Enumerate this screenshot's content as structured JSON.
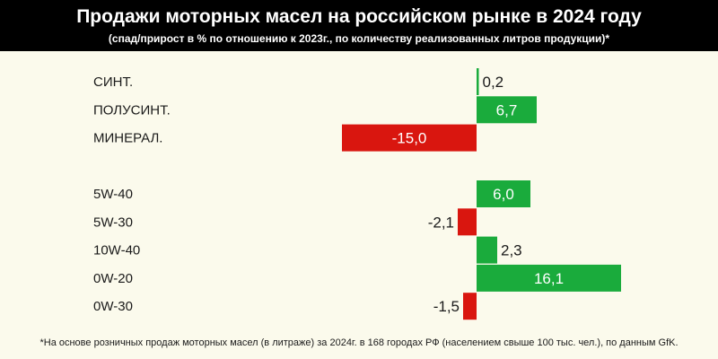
{
  "header": {
    "title": "Продажи моторных масел на российском рынке в 2024 году",
    "subtitle": "(спад/прирост в % по отношению к 2023г., по количеству реализованных литров продукции)*"
  },
  "footnote": "*На основе розничных продаж моторных масел (в литраже) за 2024г. в 168 городах РФ (населением свыше 100 тыс. чел.), по данным GfK.",
  "colors": {
    "positive": "#1aab3c",
    "negative": "#d9160f"
  },
  "chart_data": {
    "type": "bar",
    "orientation": "horizontal",
    "title": "Продажи моторных масел на российском рынке в 2024 году",
    "subtitle": "(спад/прирост в % по отношению к 2023г., по количеству реализованных литров продукции)*",
    "unit": "%",
    "xlim": [
      -15,
      16.1
    ],
    "grid": false,
    "groups": [
      {
        "categories": [
          "СИНТ.",
          "ПОЛУСИНТ.",
          "МИНЕРАЛ."
        ],
        "values": [
          0.2,
          6.7,
          -15.0
        ],
        "labels": [
          "0,2",
          "6,7",
          "-15,0"
        ]
      },
      {
        "categories": [
          "5W-40",
          "5W-30",
          "10W-40",
          "0W-20",
          "0W-30"
        ],
        "values": [
          6.0,
          -2.1,
          2.3,
          16.1,
          -1.5
        ],
        "labels": [
          "6,0",
          "-2,1",
          "2,3",
          "16,1",
          "-1,5"
        ]
      }
    ]
  }
}
